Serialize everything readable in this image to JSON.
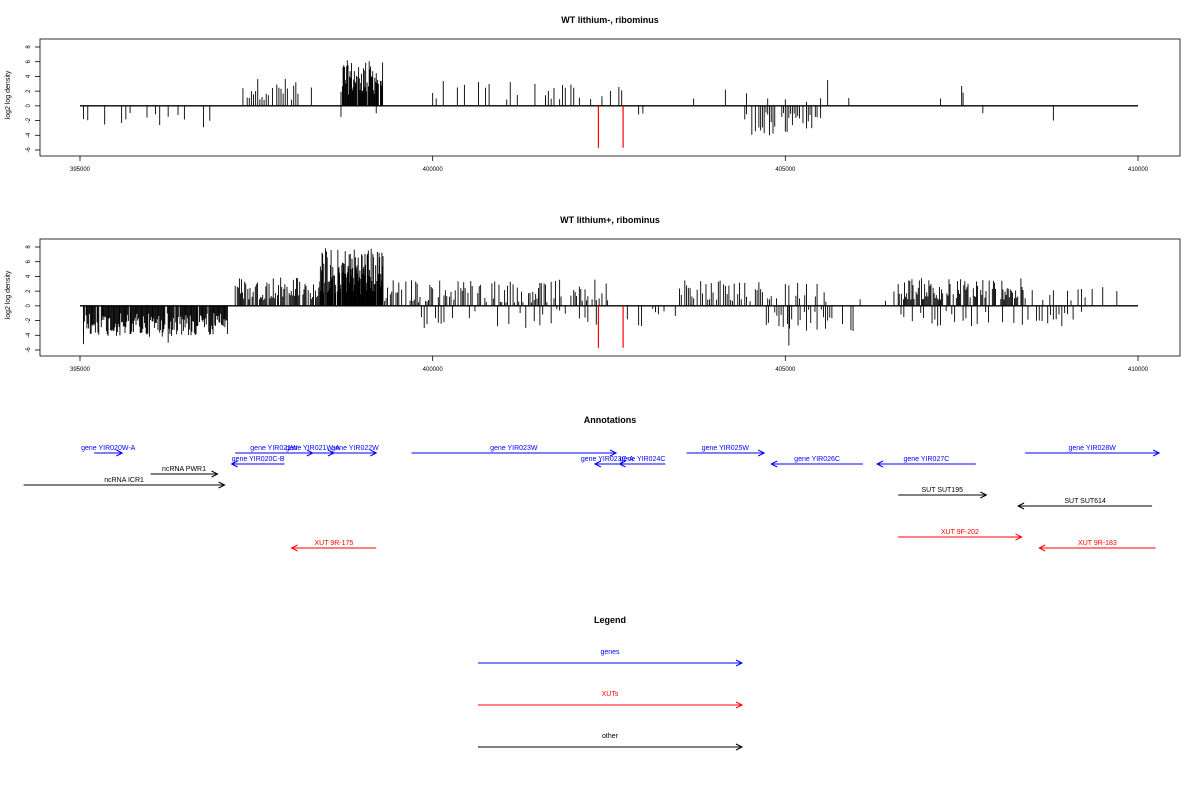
{
  "chart_data": [
    {
      "type": "bar",
      "title": "WT lithium-, ribominus",
      "ylabel": "log2 log density",
      "xlabel": "",
      "xlim": [
        395000,
        410000
      ],
      "ylim": [
        -6,
        9
      ],
      "x_ticks": [
        395000,
        400000,
        405000,
        410000
      ],
      "y_ticks": [
        -6,
        -4,
        -2,
        0,
        2,
        4,
        6,
        8
      ],
      "grid": false,
      "baseline": 0,
      "bar_color": "#000000",
      "highlight_color": "#ff0000",
      "highlight_bars": [
        {
          "x": 402350,
          "y": -5.7
        },
        {
          "x": 402700,
          "y": -5.7
        }
      ],
      "segments": [
        {
          "x_start": 395050,
          "x_end": 396300,
          "step": 60,
          "sign": -1,
          "min": 0.5,
          "max": 2.8,
          "density": 0.5
        },
        {
          "x_start": 396300,
          "x_end": 396900,
          "step": 90,
          "sign": -1,
          "min": 0.8,
          "max": 3.6,
          "density": 0.5
        },
        {
          "x_start": 397250,
          "x_end": 398100,
          "step": 30,
          "sign": 1,
          "min": 0.8,
          "max": 3.8,
          "density": 0.75
        },
        {
          "x_start": 398100,
          "x_end": 398500,
          "step": 60,
          "sign": 1,
          "min": 0.5,
          "max": 4.0,
          "density": 0.4
        },
        {
          "x_start": 398700,
          "x_end": 399300,
          "step": 10,
          "sign": 1,
          "min": 1.5,
          "max": 6.2,
          "density": 0.9
        },
        {
          "x_start": 400000,
          "x_end": 401600,
          "step": 50,
          "sign": 1,
          "min": 0.5,
          "max": 3.5,
          "density": 0.5
        },
        {
          "x_start": 401600,
          "x_end": 402700,
          "step": 40,
          "sign": 1,
          "min": 0.8,
          "max": 3.4,
          "density": 0.55
        },
        {
          "x_start": 402800,
          "x_end": 403000,
          "step": 60,
          "sign": -1,
          "min": 0.8,
          "max": 2.2,
          "density": 0.6
        },
        {
          "x_start": 404400,
          "x_end": 405500,
          "step": 25,
          "sign": -1,
          "min": 0.8,
          "max": 4.0,
          "density": 0.75
        },
        {
          "x_start": 405000,
          "x_end": 405500,
          "step": 100,
          "sign": 1,
          "min": 0.5,
          "max": 1.5,
          "density": 0.4
        },
        {
          "x_start": 405800,
          "x_end": 405900,
          "step": 50,
          "sign": 1,
          "min": 1.0,
          "max": 2.0,
          "density": 0.8
        }
      ],
      "single_bars": [
        {
          "x": 395050,
          "y": -1.8
        },
        {
          "x": 398700,
          "y": -1.5
        },
        {
          "x": 399200,
          "y": -1.0
        },
        {
          "x": 403700,
          "y": 1.0
        },
        {
          "x": 404150,
          "y": 2.2
        },
        {
          "x": 404450,
          "y": 1.7
        },
        {
          "x": 404750,
          "y": 1.0
        },
        {
          "x": 405600,
          "y": 3.5
        },
        {
          "x": 407200,
          "y": 1.0
        },
        {
          "x": 407500,
          "y": 2.7
        },
        {
          "x": 407520,
          "y": 1.8
        },
        {
          "x": 407800,
          "y": -1.0
        },
        {
          "x": 408800,
          "y": -2.0
        }
      ]
    },
    {
      "type": "bar",
      "title": "WT lithium+, ribominus",
      "ylabel": "log2 log density",
      "xlabel": "",
      "xlim": [
        395000,
        410000
      ],
      "ylim": [
        -6,
        9
      ],
      "x_ticks": [
        395000,
        400000,
        405000,
        410000
      ],
      "y_ticks": [
        -6,
        -4,
        -2,
        0,
        2,
        4,
        6,
        8
      ],
      "grid": false,
      "baseline": 0,
      "bar_color": "#000000",
      "highlight_color": "#ff0000",
      "highlight_bars": [
        {
          "x": 402350,
          "y": -5.7
        },
        {
          "x": 402700,
          "y": -5.7
        }
      ],
      "segments": [
        {
          "x_start": 395050,
          "x_end": 397100,
          "step": 12,
          "sign": -1,
          "min": 1.0,
          "max": 4.2,
          "density": 0.95
        },
        {
          "x_start": 397200,
          "x_end": 398400,
          "step": 15,
          "sign": 1,
          "min": 0.8,
          "max": 4.0,
          "density": 0.8
        },
        {
          "x_start": 398400,
          "x_end": 399300,
          "step": 8,
          "sign": 1,
          "min": 1.5,
          "max": 8.0,
          "density": 0.95
        },
        {
          "x_start": 399300,
          "x_end": 402500,
          "step": 20,
          "sign": 1,
          "min": 0.4,
          "max": 3.6,
          "density": 0.6
        },
        {
          "x_start": 399800,
          "x_end": 403500,
          "step": 40,
          "sign": -1,
          "min": 0.4,
          "max": 3.0,
          "density": 0.4
        },
        {
          "x_start": 403500,
          "x_end": 405600,
          "step": 25,
          "sign": 1,
          "min": 0.5,
          "max": 3.5,
          "density": 0.55
        },
        {
          "x_start": 404700,
          "x_end": 406000,
          "step": 30,
          "sign": -1,
          "min": 0.5,
          "max": 3.5,
          "density": 0.55
        },
        {
          "x_start": 406000,
          "x_end": 406600,
          "step": 60,
          "sign": 1,
          "min": 0.5,
          "max": 2.0,
          "density": 0.35
        },
        {
          "x_start": 406600,
          "x_end": 408400,
          "step": 15,
          "sign": 1,
          "min": 0.8,
          "max": 3.8,
          "density": 0.75
        },
        {
          "x_start": 406600,
          "x_end": 409200,
          "step": 40,
          "sign": -1,
          "min": 0.5,
          "max": 3.0,
          "density": 0.45
        },
        {
          "x_start": 408400,
          "x_end": 410000,
          "step": 50,
          "sign": 1,
          "min": 0.5,
          "max": 2.6,
          "density": 0.45
        }
      ],
      "single_bars": [
        {
          "x": 395050,
          "y": -5.2
        },
        {
          "x": 396250,
          "y": -5.0
        },
        {
          "x": 405050,
          "y": -5.4
        }
      ]
    }
  ],
  "annotations": {
    "title": "Annotations",
    "xlim": [
      395000,
      410000
    ],
    "features": [
      {
        "label": "gene YIR020W-A",
        "kind": "gene",
        "dir": "+",
        "start": 395200,
        "end": 395600,
        "row": 0
      },
      {
        "label": "gene YIR021W",
        "kind": "gene",
        "dir": "+",
        "start": 397200,
        "end": 398300,
        "row": 0
      },
      {
        "label": "gene YIR021W-A",
        "kind": "gene",
        "dir": "+",
        "start": 398000,
        "end": 398600,
        "row": 0
      },
      {
        "label": "gene YIR022W",
        "kind": "gene",
        "dir": "+",
        "start": 398600,
        "end": 399200,
        "row": 0
      },
      {
        "label": "gene YIR023W",
        "kind": "gene",
        "dir": "+",
        "start": 399700,
        "end": 402600,
        "row": 0
      },
      {
        "label": "gene YIR025W",
        "kind": "gene",
        "dir": "+",
        "start": 403600,
        "end": 404700,
        "row": 0
      },
      {
        "label": "gene YIR028W",
        "kind": "gene",
        "dir": "+",
        "start": 408400,
        "end": 410300,
        "row": 0
      },
      {
        "label": "gene YIR020C-B",
        "kind": "gene",
        "dir": "-",
        "start": 397150,
        "end": 397900,
        "row": 1
      },
      {
        "label": "gene YIR023C-A",
        "kind": "gene",
        "dir": "-",
        "start": 402300,
        "end": 402650,
        "row": 1
      },
      {
        "label": "gene YIR024C",
        "kind": "gene",
        "dir": "-",
        "start": 402650,
        "end": 403300,
        "row": 1
      },
      {
        "label": "gene YIR026C",
        "kind": "gene",
        "dir": "-",
        "start": 404800,
        "end": 406100,
        "row": 1
      },
      {
        "label": "gene YIR027C",
        "kind": "gene",
        "dir": "-",
        "start": 406300,
        "end": 407700,
        "row": 1
      },
      {
        "label": "ncRNA PWR1",
        "kind": "other",
        "dir": "+",
        "start": 396000,
        "end": 396950,
        "row": 2
      },
      {
        "label": "ncRNA ICR1",
        "kind": "other",
        "dir": "+",
        "start": 394200,
        "end": 397050,
        "row": 3
      },
      {
        "label": "SUT SUT195",
        "kind": "other",
        "dir": "+",
        "start": 406600,
        "end": 407850,
        "row": 4
      },
      {
        "label": "SUT SUT614",
        "kind": "other",
        "dir": "-",
        "start": 408300,
        "end": 410200,
        "row": 5
      },
      {
        "label": "XUT 9F-202",
        "kind": "xut",
        "dir": "+",
        "start": 406600,
        "end": 408350,
        "row": 6
      },
      {
        "label": "XUT 9R-175",
        "kind": "xut",
        "dir": "-",
        "start": 398000,
        "end": 399200,
        "row": 7
      },
      {
        "label": "XUT 9R-183",
        "kind": "xut",
        "dir": "-",
        "start": 408600,
        "end": 410250,
        "row": 7
      }
    ]
  },
  "legend": {
    "title": "Legend",
    "items": [
      {
        "label": "genes",
        "color": "#0000ff"
      },
      {
        "label": "XUTs",
        "color": "#ff0000"
      },
      {
        "label": "other",
        "color": "#000000"
      }
    ]
  },
  "colors": {
    "gene": "#0000ff",
    "xut": "#ff0000",
    "other": "#000000"
  }
}
